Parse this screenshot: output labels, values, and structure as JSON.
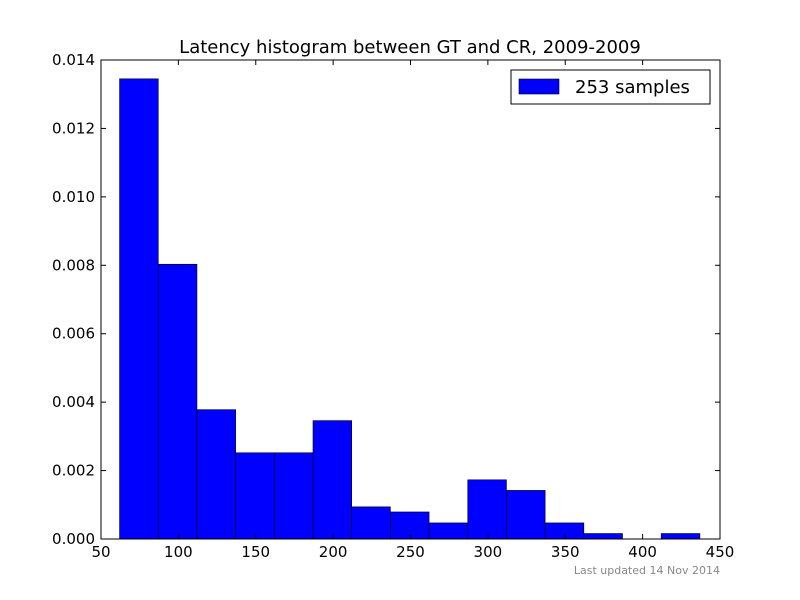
{
  "chart_data": {
    "type": "bar",
    "title": "Latency histogram between GT and CR, 2009-2009",
    "xlabel": "",
    "ylabel": "",
    "xlim": [
      50,
      450
    ],
    "ylim": [
      0,
      0.014
    ],
    "x_ticks": [
      50,
      100,
      150,
      200,
      250,
      300,
      350,
      400,
      450
    ],
    "x_tick_labels": [
      "50",
      "100",
      "150",
      "200",
      "250",
      "300",
      "350",
      "400",
      "450"
    ],
    "y_ticks": [
      0,
      0.002,
      0.004,
      0.006,
      0.008,
      0.01,
      0.012,
      0.014
    ],
    "y_tick_labels": [
      "0.000",
      "0.002",
      "0.004",
      "0.006",
      "0.008",
      "0.010",
      "0.012",
      "0.014"
    ],
    "bin_edges": [
      62,
      87,
      112,
      137,
      162,
      187,
      212,
      237,
      262,
      287,
      312,
      337,
      362,
      387,
      412,
      437
    ],
    "series": [
      {
        "name": "253 samples",
        "color": "#0000ff",
        "values": [
          0.01345,
          0.00803,
          0.00378,
          0.00252,
          0.00252,
          0.00346,
          0.00094,
          0.00079,
          0.00047,
          0.00173,
          0.00142,
          0.00047,
          0.00016,
          0.0,
          0.00016
        ]
      }
    ],
    "legend_position": "top-right",
    "grid": false
  },
  "footer": {
    "text": "Last updated 14 Nov 2014"
  }
}
